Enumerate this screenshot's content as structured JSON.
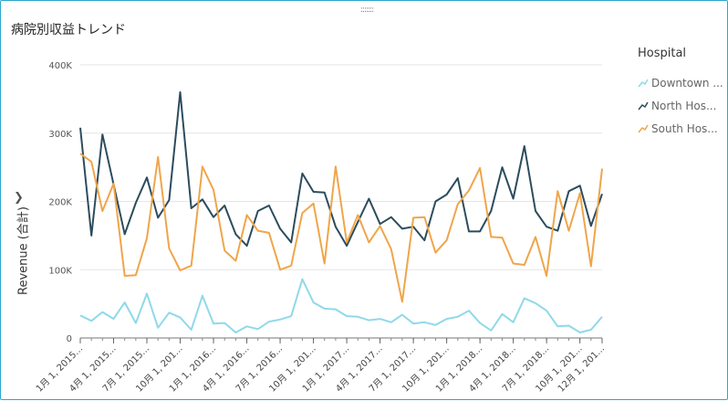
{
  "visual": {
    "title": "病院別収益トレンド",
    "drag_handle": ":::::::"
  },
  "legend": {
    "title": "Hospital",
    "items": [
      {
        "label": "Downtown ...",
        "color": "#8fd9ea",
        "icon": "line-icon"
      },
      {
        "label": "North Hos...",
        "color": "#2c4c5e",
        "icon": "line-icon"
      },
      {
        "label": "South Hos...",
        "color": "#f0a54a",
        "icon": "line-icon"
      }
    ]
  },
  "chart_data": {
    "type": "line",
    "title": "病院別収益トレンド",
    "ylabel": "Revenue (合計)",
    "xlabel": "",
    "ylim": [
      0,
      400000
    ],
    "yticks": [
      "0",
      "100K",
      "200K",
      "300K",
      "400K"
    ],
    "xticks": [
      "1月 1, 2015...",
      "4月 1, 2015...",
      "7月 1, 2015...",
      "10月 1, 201...",
      "1月 1, 2016...",
      "4月 1, 2016...",
      "7月 1, 2016...",
      "10月 1, 201...",
      "1月 1, 2017...",
      "4月 1, 2017...",
      "7月 1, 2017...",
      "10月 1, 201...",
      "1月 1, 2018...",
      "4月 1, 2018...",
      "7月 1, 2018...",
      "10月 1, 201...",
      "12月 1, 201..."
    ],
    "xtick_month_index": [
      0,
      3,
      6,
      9,
      12,
      15,
      18,
      21,
      24,
      27,
      30,
      33,
      36,
      39,
      42,
      45,
      47
    ],
    "x_months": [
      "2015-01",
      "2015-02",
      "2015-03",
      "2015-04",
      "2015-05",
      "2015-06",
      "2015-07",
      "2015-08",
      "2015-09",
      "2015-10",
      "2015-11",
      "2015-12",
      "2016-01",
      "2016-02",
      "2016-03",
      "2016-04",
      "2016-05",
      "2016-06",
      "2016-07",
      "2016-08",
      "2016-09",
      "2016-10",
      "2016-11",
      "2016-12",
      "2017-01",
      "2017-02",
      "2017-03",
      "2017-04",
      "2017-05",
      "2017-06",
      "2017-07",
      "2017-08",
      "2017-09",
      "2017-10",
      "2017-11",
      "2017-12",
      "2018-01",
      "2018-02",
      "2018-03",
      "2018-04",
      "2018-05",
      "2018-06",
      "2018-07",
      "2018-08",
      "2018-09",
      "2018-10",
      "2018-11",
      "2018-12"
    ],
    "grid": true,
    "legend_position": "right",
    "series": [
      {
        "name": "Downtown ...",
        "color": "#8fd9ea",
        "values": [
          33000,
          25000,
          38000,
          28000,
          52000,
          22000,
          65000,
          15000,
          37000,
          30000,
          12000,
          62000,
          21000,
          22000,
          8000,
          17000,
          13000,
          24000,
          27000,
          32000,
          86000,
          52000,
          43000,
          42000,
          32000,
          31000,
          26000,
          28000,
          23000,
          34000,
          21000,
          23000,
          19000,
          28000,
          31000,
          40000,
          22000,
          11000,
          35000,
          23000,
          58000,
          51000,
          40000,
          17000,
          18000,
          8000,
          12000,
          31000
        ]
      },
      {
        "name": "North Hos...",
        "color": "#2c4c5e",
        "values": [
          308000,
          150000,
          298000,
          225000,
          152000,
          198000,
          235000,
          176000,
          202000,
          360000,
          190000,
          203000,
          177000,
          194000,
          152000,
          135000,
          186000,
          194000,
          160000,
          140000,
          241000,
          214000,
          213000,
          163000,
          135000,
          170000,
          204000,
          167000,
          177000,
          160000,
          163000,
          143000,
          200000,
          210000,
          234000,
          156000,
          156000,
          186000,
          250000,
          204000,
          281000,
          186000,
          163000,
          157000,
          215000,
          223000,
          164000,
          211000
        ]
      },
      {
        "name": "South Hos...",
        "color": "#f0a54a",
        "values": [
          270000,
          258000,
          186000,
          226000,
          91000,
          92000,
          146000,
          265000,
          131000,
          99000,
          106000,
          251000,
          217000,
          128000,
          113000,
          180000,
          157000,
          154000,
          100000,
          106000,
          183000,
          197000,
          109000,
          251000,
          140000,
          180000,
          140000,
          164000,
          130000,
          53000,
          176000,
          177000,
          125000,
          143000,
          196000,
          216000,
          249000,
          148000,
          147000,
          109000,
          107000,
          148000,
          91000,
          215000,
          157000,
          212000,
          105000,
          248000
        ]
      }
    ]
  }
}
